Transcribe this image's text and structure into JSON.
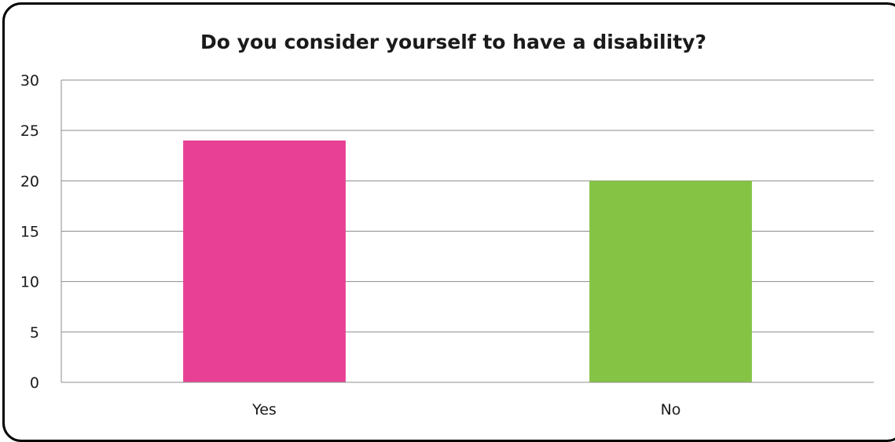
{
  "chart_data": {
    "type": "bar",
    "title": "Do you consider yourself to have a disability?",
    "xlabel": "",
    "ylabel": "",
    "categories": [
      "Yes",
      "No"
    ],
    "values": [
      24,
      20
    ],
    "colors": [
      "#e84095",
      "#85c345"
    ],
    "ylim": [
      0,
      30
    ],
    "yticks": [
      "0",
      "5",
      "10",
      "15",
      "20",
      "25",
      "30"
    ],
    "grid": true,
    "legend": "none"
  }
}
